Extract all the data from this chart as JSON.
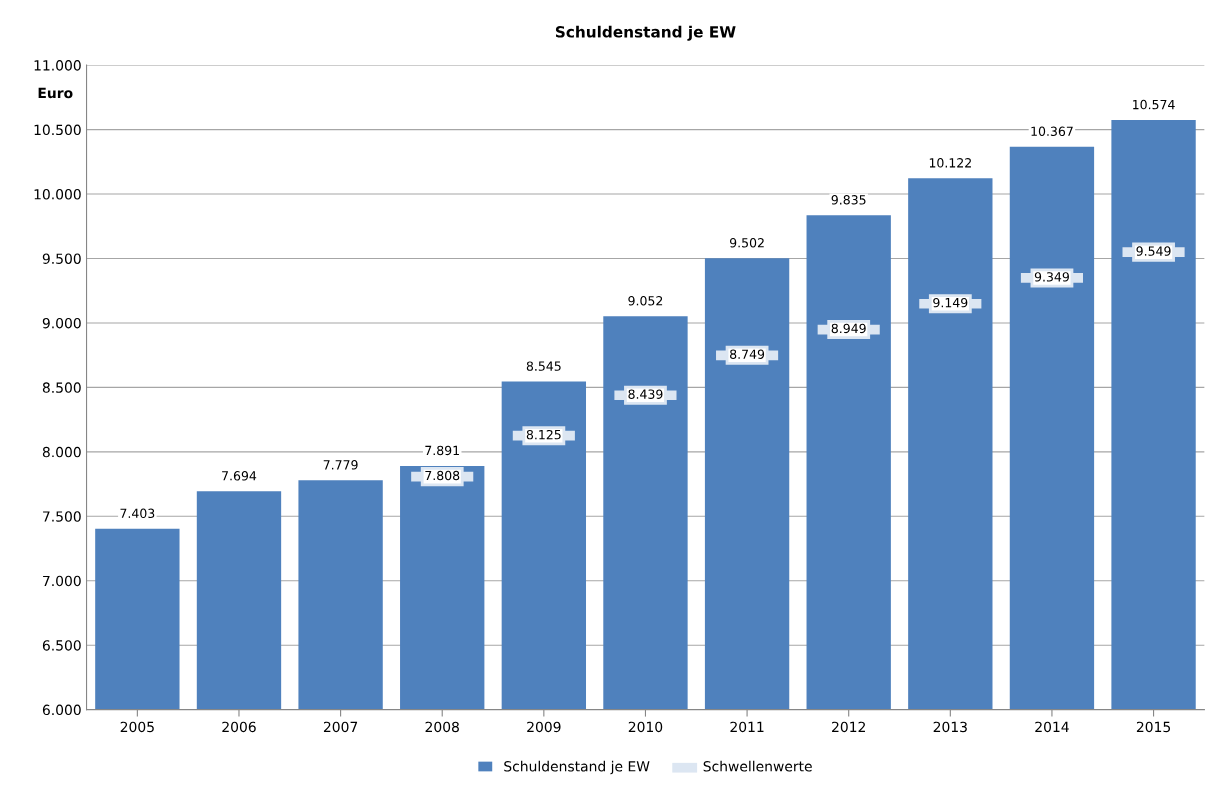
{
  "chart_data": {
    "type": "bar",
    "title": "Schuldenstand je EW",
    "ylabel": "Euro",
    "categories": [
      "2005",
      "2006",
      "2007",
      "2008",
      "2009",
      "2010",
      "2011",
      "2012",
      "2013",
      "2014",
      "2015"
    ],
    "series": [
      {
        "name": "Schuldenstand je EW",
        "color": "#4f81bd",
        "values": [
          7403,
          7694,
          7779,
          7891,
          8545,
          9052,
          9502,
          9835,
          10122,
          10367,
          10574
        ],
        "value_labels": [
          "7.403",
          "7.694",
          "7.779",
          "7.891",
          "8.545",
          "9.052",
          "9.502",
          "9.835",
          "10.122",
          "10.367",
          "10.574"
        ]
      },
      {
        "name": "Schwellenwerte",
        "type": "scatter",
        "color": "#dce6f2",
        "values": [
          null,
          null,
          null,
          7808,
          8125,
          8439,
          8749,
          8949,
          9149,
          9349,
          9549
        ],
        "value_labels": [
          null,
          null,
          null,
          "7.808",
          "8.125",
          "8.439",
          "8.749",
          "8.949",
          "9.149",
          "9.349",
          "9.549"
        ]
      }
    ],
    "ylim": [
      6000,
      11000
    ],
    "yticks": [
      {
        "value": 6000,
        "label": "6.000"
      },
      {
        "value": 6500,
        "label": "6.500"
      },
      {
        "value": 7000,
        "label": "7.000"
      },
      {
        "value": 7500,
        "label": "7.500"
      },
      {
        "value": 8000,
        "label": "8.000"
      },
      {
        "value": 8500,
        "label": "8.500"
      },
      {
        "value": 9000,
        "label": "9.000"
      },
      {
        "value": 9500,
        "label": "9.500"
      },
      {
        "value": 10000,
        "label": "10.000"
      },
      {
        "value": 10500,
        "label": "10.500"
      },
      {
        "value": 11000,
        "label": "11.000"
      }
    ],
    "grid": "y",
    "legend": "bottom"
  }
}
